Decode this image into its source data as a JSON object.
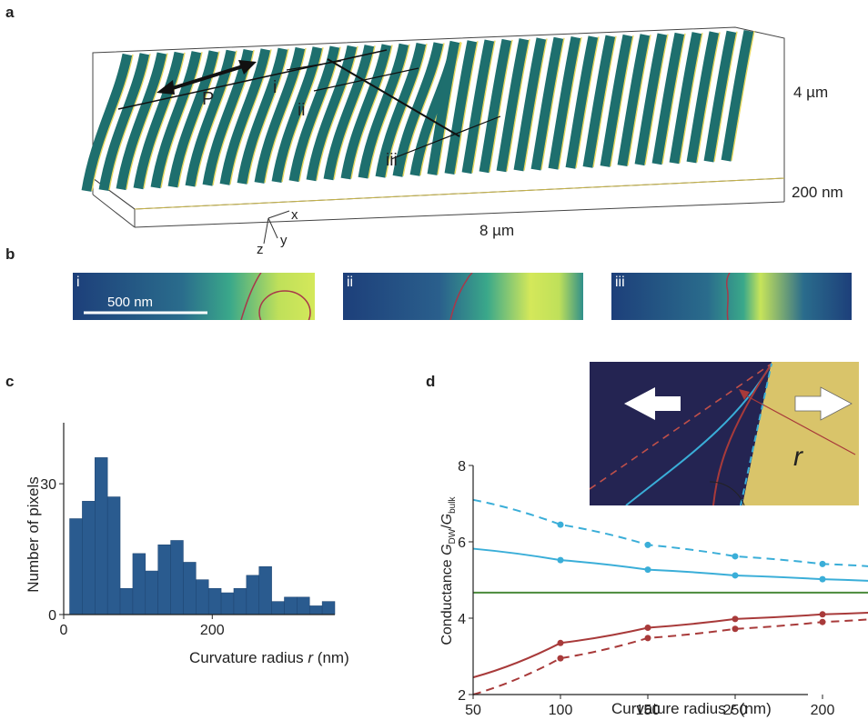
{
  "panels": {
    "a": "a",
    "b": "b",
    "c": "c",
    "d": "d"
  },
  "panel_a": {
    "labels": {
      "i": "i",
      "ii": "ii",
      "iii": "iii",
      "p": "P"
    },
    "dims": {
      "height": "4 µm",
      "thickness": "200 nm",
      "length": "8 µm"
    },
    "axes": {
      "x": "x",
      "y": "y",
      "z": "z"
    }
  },
  "panel_b": {
    "strips": [
      {
        "tag": "i",
        "scale": "500 nm"
      },
      {
        "tag": "ii"
      },
      {
        "tag": "iii"
      }
    ]
  },
  "chart_data": [
    {
      "type": "bar",
      "panel": "c",
      "xlabel_prefix": "Curvature radius ",
      "xlabel_var": "r",
      "xlabel_suffix": " (nm)",
      "ylabel": "Number of pixels",
      "bin_width": 17,
      "bins_start": [
        8,
        25,
        42,
        59,
        76,
        93,
        110,
        127,
        144,
        161,
        178,
        195,
        212,
        229,
        246,
        263,
        280,
        297,
        314,
        331,
        348
      ],
      "values": [
        22,
        26,
        36,
        27,
        6,
        14,
        10,
        16,
        17,
        12,
        8,
        6,
        5,
        6,
        9,
        11,
        3,
        4,
        4,
        2,
        3
      ],
      "xticks": [
        0,
        200
      ],
      "xtick_labels": [
        "0",
        "200"
      ],
      "yticks": [
        0,
        30
      ],
      "ytick_labels": [
        "0",
        "30"
      ],
      "xlim": [
        0,
        365
      ],
      "ylim": [
        0,
        44
      ],
      "color": "#2a5b8f"
    },
    {
      "type": "line",
      "panel": "d",
      "xlabel_prefix": "Curvature radius ",
      "xlabel_var": "r",
      "xlabel_suffix": " (nm)",
      "ylabel_prefix": "Conductance ",
      "ylabel_num": "G",
      "ylabel_num_sub": "DW",
      "ylabel_den": "G",
      "ylabel_den_sub": "bulk",
      "categories": [
        "50",
        "100",
        "150",
        "250",
        "200"
      ],
      "ylim": [
        2,
        8
      ],
      "yticks": [
        2,
        4,
        6,
        8
      ],
      "ytick_labels": [
        "2",
        "4",
        "6",
        "8"
      ],
      "series": [
        {
          "color": "#3aaed8",
          "dash": true,
          "curve": [
            [
              0,
              7.1
            ],
            [
              1,
              6.45
            ],
            [
              2,
              5.92
            ],
            [
              3,
              5.62
            ],
            [
              4,
              5.42
            ],
            [
              4.6,
              5.35
            ]
          ],
          "points": [
            [
              1,
              6.45
            ],
            [
              2,
              5.92
            ],
            [
              3,
              5.62
            ],
            [
              4,
              5.42
            ]
          ]
        },
        {
          "color": "#3aaed8",
          "dash": false,
          "curve": [
            [
              0,
              5.82
            ],
            [
              1,
              5.52
            ],
            [
              2,
              5.27
            ],
            [
              3,
              5.12
            ],
            [
              4,
              5.02
            ],
            [
              4.6,
              4.97
            ]
          ],
          "points": [
            [
              1,
              5.52
            ],
            [
              2,
              5.27
            ],
            [
              3,
              5.12
            ],
            [
              4,
              5.02
            ]
          ]
        },
        {
          "color": "#4a8a3a",
          "dash": false,
          "curve": [
            [
              0,
              4.67
            ],
            [
              4.6,
              4.67
            ]
          ],
          "points": []
        },
        {
          "color": "#a83a3a",
          "dash": false,
          "curve": [
            [
              0,
              2.45
            ],
            [
              1,
              3.35
            ],
            [
              2,
              3.75
            ],
            [
              3,
              3.98
            ],
            [
              4,
              4.1
            ],
            [
              4.6,
              4.15
            ]
          ],
          "points": [
            [
              1,
              3.35
            ],
            [
              2,
              3.75
            ],
            [
              3,
              3.98
            ],
            [
              4,
              4.1
            ]
          ]
        },
        {
          "color": "#a83a3a",
          "dash": true,
          "curve": [
            [
              0,
              2.0
            ],
            [
              1,
              2.95
            ],
            [
              2,
              3.48
            ],
            [
              3,
              3.72
            ],
            [
              4,
              3.9
            ],
            [
              4.6,
              3.98
            ]
          ],
          "points": [
            [
              1,
              2.95
            ],
            [
              2,
              3.48
            ],
            [
              3,
              3.72
            ],
            [
              4,
              3.9
            ]
          ]
        }
      ]
    }
  ],
  "inset_d": {
    "r_label": "r"
  }
}
